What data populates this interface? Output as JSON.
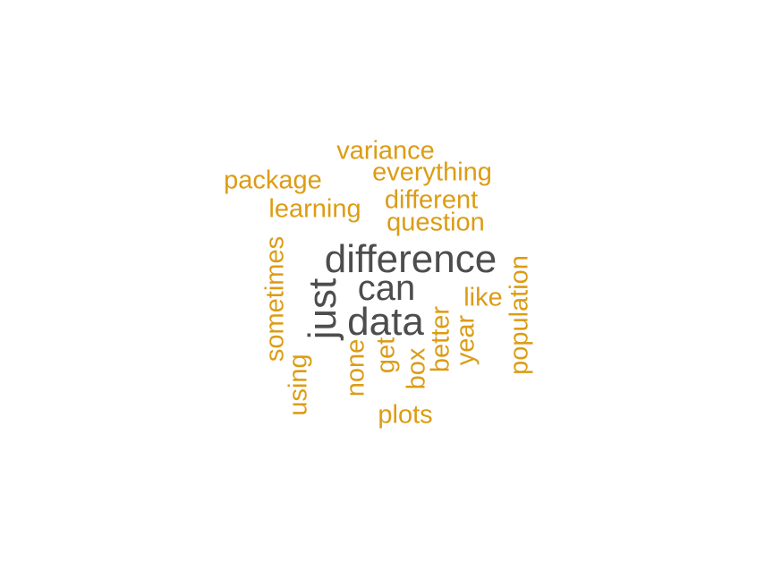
{
  "colors": {
    "primary": "#4d4d4d",
    "accent": "#dc9c14",
    "background": "#ffffff"
  },
  "words": [
    {
      "id": "difference",
      "text": "difference",
      "group": "big",
      "vertical": false
    },
    {
      "id": "can",
      "text": "can",
      "group": "big",
      "vertical": false
    },
    {
      "id": "data",
      "text": "data",
      "group": "big",
      "vertical": false
    },
    {
      "id": "just",
      "text": "just",
      "group": "big",
      "vertical": true
    },
    {
      "id": "variance",
      "text": "variance",
      "group": "small",
      "vertical": false
    },
    {
      "id": "everything",
      "text": "everything",
      "group": "small",
      "vertical": false
    },
    {
      "id": "package",
      "text": "package",
      "group": "small",
      "vertical": false
    },
    {
      "id": "different",
      "text": "different",
      "group": "small",
      "vertical": false
    },
    {
      "id": "learning",
      "text": "learning",
      "group": "small",
      "vertical": false
    },
    {
      "id": "question",
      "text": "question",
      "group": "small",
      "vertical": false
    },
    {
      "id": "like",
      "text": "like",
      "group": "small",
      "vertical": false
    },
    {
      "id": "plots",
      "text": "plots",
      "group": "small",
      "vertical": false
    },
    {
      "id": "sometimes",
      "text": "sometimes",
      "group": "small",
      "vertical": true
    },
    {
      "id": "using",
      "text": "using",
      "group": "small",
      "vertical": true
    },
    {
      "id": "none",
      "text": "none",
      "group": "small",
      "vertical": true
    },
    {
      "id": "get",
      "text": "get",
      "group": "small",
      "vertical": true
    },
    {
      "id": "box",
      "text": "box",
      "group": "small",
      "vertical": true
    },
    {
      "id": "better",
      "text": "better",
      "group": "small",
      "vertical": true
    },
    {
      "id": "year",
      "text": "year",
      "group": "small",
      "vertical": true
    },
    {
      "id": "population",
      "text": "population",
      "group": "small",
      "vertical": true
    }
  ]
}
